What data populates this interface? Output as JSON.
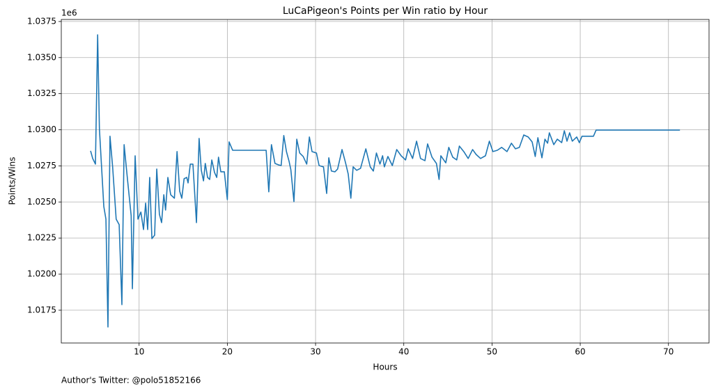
{
  "chart_data": {
    "type": "line",
    "title": "LuCaPigeon's Points per Win ratio by Hour",
    "xlabel": "Hours",
    "ylabel": "Points/Wins",
    "y_offset_label": "1e6",
    "annotation": "Author's Twitter: @polo51852166",
    "grid": true,
    "xlim": [
      1.18,
      74.6
    ],
    "xticks": [
      10,
      20,
      30,
      40,
      50,
      60,
      70
    ],
    "ylim": [
      1.01523,
      1.03764
    ],
    "yticks": [
      1.0175,
      {
        "value": 1.02,
        "label": "1.0200"
      },
      1.0225,
      {
        "value": 1.025,
        "label": "1.0250"
      },
      1.0275,
      {
        "value": 1.03,
        "label": "1.0300"
      },
      1.0325,
      {
        "value": 1.035,
        "label": "1.0350"
      },
      1.0375
    ],
    "series": [
      {
        "name": "Points/Wins",
        "color": "#1f77b4",
        "x": [
          4.5,
          4.74,
          5.05,
          5.3,
          5.5,
          6.0,
          6.24,
          6.47,
          6.7,
          7.0,
          7.4,
          7.74,
          8.05,
          8.3,
          8.7,
          9.1,
          9.24,
          9.55,
          9.87,
          10.2,
          10.5,
          10.74,
          10.97,
          11.2,
          11.45,
          11.76,
          12.0,
          12.3,
          12.55,
          12.8,
          13.0,
          13.26,
          13.58,
          14.0,
          14.3,
          14.6,
          14.84,
          15.1,
          15.4,
          15.55,
          15.8,
          16.1,
          16.5,
          16.8,
          17.05,
          17.3,
          17.5,
          17.76,
          18.0,
          18.24,
          18.55,
          18.8,
          19.0,
          19.26,
          19.66,
          20.0,
          20.2,
          20.6,
          24.4,
          24.7,
          25.0,
          25.4,
          25.8,
          26.1,
          26.4,
          26.7,
          27.0,
          27.2,
          27.55,
          27.87,
          28.2,
          28.6,
          29.0,
          29.3,
          29.6,
          30.1,
          30.4,
          30.9,
          31.26,
          31.5,
          31.8,
          32.2,
          32.5,
          33.0,
          33.4,
          33.7,
          34.0,
          34.26,
          34.66,
          35.1,
          35.7,
          36.2,
          36.55,
          36.9,
          37.3,
          37.6,
          37.8,
          38.2,
          38.7,
          39.2,
          39.7,
          40.2,
          40.5,
          41.0,
          41.45,
          41.9,
          42.4,
          42.7,
          43.2,
          43.7,
          44.0,
          44.2,
          44.76,
          45.1,
          45.55,
          46.0,
          46.3,
          46.8,
          47.3,
          47.8,
          48.2,
          48.7,
          49.26,
          49.7,
          50.1,
          50.6,
          51.1,
          51.7,
          52.2,
          52.66,
          53.1,
          53.6,
          54.1,
          54.55,
          54.9,
          55.2,
          55.66,
          56.0,
          56.3,
          56.5,
          57.0,
          57.4,
          57.9,
          58.2,
          58.5,
          58.8,
          59.1,
          59.6,
          59.9,
          60.2,
          61.5,
          61.8,
          71.3
        ],
        "values": [
          1.02854,
          1.02801,
          1.02762,
          1.03658,
          1.03008,
          1.02468,
          1.02381,
          1.01634,
          1.02955,
          1.02743,
          1.02381,
          1.02343,
          1.01789,
          1.02897,
          1.02646,
          1.02405,
          1.01899,
          1.0282,
          1.02381,
          1.0243,
          1.02309,
          1.02492,
          1.02309,
          1.0267,
          1.02246,
          1.0227,
          1.02728,
          1.02415,
          1.02357,
          1.0255,
          1.02444,
          1.0267,
          1.0255,
          1.02526,
          1.02849,
          1.02574,
          1.02526,
          1.02661,
          1.0267,
          1.02632,
          1.02762,
          1.02762,
          1.02357,
          1.0294,
          1.02719,
          1.02646,
          1.02767,
          1.0267,
          1.02656,
          1.02791,
          1.02704,
          1.0267,
          1.0281,
          1.02709,
          1.02709,
          1.02516,
          1.02916,
          1.02858,
          1.02858,
          1.0257,
          1.02897,
          1.02767,
          1.02757,
          1.02752,
          1.0296,
          1.02849,
          1.02781,
          1.02723,
          1.02502,
          1.02935,
          1.02839,
          1.02815,
          1.02762,
          1.0295,
          1.02849,
          1.02839,
          1.02752,
          1.02743,
          1.02559,
          1.02806,
          1.02714,
          1.02709,
          1.02728,
          1.02863,
          1.02771,
          1.02694,
          1.02526,
          1.02743,
          1.02719,
          1.02733,
          1.02868,
          1.02743,
          1.02714,
          1.02839,
          1.02762,
          1.0282,
          1.02743,
          1.02815,
          1.02752,
          1.02863,
          1.0282,
          1.02791,
          1.02868,
          1.02801,
          1.02921,
          1.02801,
          1.02786,
          1.02902,
          1.0281,
          1.02767,
          1.02656,
          1.0282,
          1.02771,
          1.02878,
          1.0281,
          1.02791,
          1.02887,
          1.02849,
          1.02801,
          1.02863,
          1.02829,
          1.02801,
          1.0282,
          1.02921,
          1.02849,
          1.02858,
          1.02878,
          1.02849,
          1.02907,
          1.02868,
          1.02878,
          1.02964,
          1.0295,
          1.02916,
          1.02815,
          1.02945,
          1.02806,
          1.02935,
          1.02907,
          1.02979,
          1.02897,
          1.02935,
          1.02911,
          1.02993,
          1.02921,
          1.02979,
          1.02921,
          1.0295,
          1.02911,
          1.02955,
          1.02955,
          1.02998,
          1.02998
        ]
      }
    ]
  }
}
